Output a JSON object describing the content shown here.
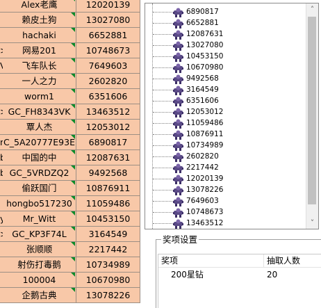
{
  "sheet": {
    "rows": [
      {
        "left": "",
        "name": "Alex老鹰",
        "id": "12020139"
      },
      {
        "left": "",
        "name": "赖皮土狗",
        "id": "13027080"
      },
      {
        "left": "",
        "name": "hachaki",
        "id": "6652881"
      },
      {
        "left": ">",
        "name": "网易201",
        "id": "10748673"
      },
      {
        "left": "V",
        "name": "飞车队长",
        "id": "7649603"
      },
      {
        "left": "",
        "name": "一人之力",
        "id": "2602820"
      },
      {
        "left": "",
        "name": "worm1",
        "id": "6351606"
      },
      {
        "left": ">",
        "name": "GC_FH8343VK",
        "id": "13463512"
      },
      {
        "left": "",
        "name": "覃人杰",
        "id": "12053012"
      },
      {
        "left": "n",
        "name": "C_5A20777E93E",
        "id": "6890817"
      },
      {
        "left": "b",
        "name": "中国的中",
        "id": "12087631"
      },
      {
        "left": "b",
        "name": "GC_5VRDZQ2",
        "id": "9492568"
      },
      {
        "left": "",
        "name": "偷跃国门",
        "id": "10876911"
      },
      {
        "left": "",
        "name": "hongbo517230",
        "id": "11059486"
      },
      {
        "left": "y",
        "name": "Mr_Witt",
        "id": "10453150"
      },
      {
        "left": ">",
        "name": "GC_KP3F74L",
        "id": "3164549"
      },
      {
        "left": "",
        "name": "张顺顺",
        "id": "2217442"
      },
      {
        "left": "",
        "name": "射伤打毒鹅",
        "id": "10734989"
      },
      {
        "left": "",
        "name": "100004",
        "id": "10670980"
      },
      {
        "left": "",
        "name": "企鹅古典",
        "id": "13078226"
      }
    ]
  },
  "tree": {
    "items": [
      "6890817",
      "6652881",
      "12087631",
      "13027080",
      "10453150",
      "10670980",
      "9492568",
      "3164549",
      "6351606",
      "12053012",
      "11059486",
      "10876911",
      "10734989",
      "2602820",
      "2217442",
      "12020139",
      "13078226",
      "7649603",
      "10748673",
      "13463512"
    ],
    "scroll_up_glyph": "˄",
    "scroll_down_glyph": "˅"
  },
  "prize_settings": {
    "title": "奖项设置",
    "columns": [
      "奖项",
      "抽取人数"
    ],
    "rows": [
      {
        "prize": "200星钻",
        "count": "20"
      }
    ]
  }
}
